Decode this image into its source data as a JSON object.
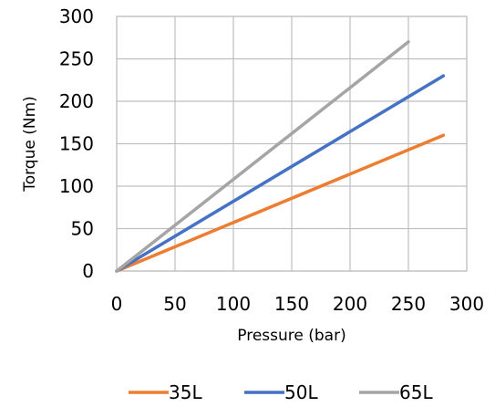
{
  "chart_data": {
    "type": "line",
    "title": "",
    "xlabel": "Pressure (bar)",
    "ylabel": "Torque (Nm)",
    "xlim": [
      0,
      300
    ],
    "ylim": [
      0,
      300
    ],
    "xticks": [
      "0",
      "50",
      "100",
      "150",
      "200",
      "250",
      "300"
    ],
    "yticks": [
      "0",
      "50",
      "100",
      "150",
      "200",
      "250",
      "300"
    ],
    "grid": true,
    "legend_position": "bottom",
    "series": [
      {
        "name": "35L",
        "color": "#ed7d31",
        "x": [
          0,
          280
        ],
        "y": [
          0,
          160
        ]
      },
      {
        "name": "50L",
        "color": "#4472c4",
        "x": [
          0,
          280
        ],
        "y": [
          0,
          230
        ]
      },
      {
        "name": "65L",
        "color": "#a5a5a5",
        "x": [
          0,
          250
        ],
        "y": [
          0,
          270
        ]
      }
    ]
  }
}
